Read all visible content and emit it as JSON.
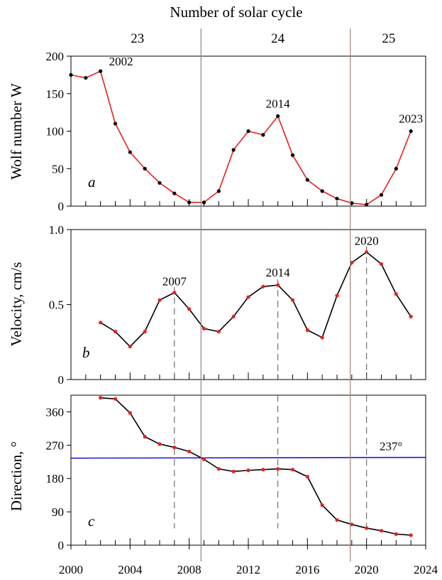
{
  "title": "Number of solar cycle",
  "cycles": [
    {
      "label": "23",
      "x": 2004.5
    },
    {
      "label": "24",
      "x": 2014.0
    },
    {
      "label": "25",
      "x": 2021.5
    }
  ],
  "cycle_boundaries": [
    2008.8,
    2018.9
  ],
  "x_axis": {
    "range": [
      2000,
      2024
    ],
    "ticks": [
      2000,
      2004,
      2008,
      2012,
      2016,
      2020,
      2024
    ],
    "tick_labels": [
      "2000",
      "2004",
      "2008",
      "2012",
      "2016",
      "2020",
      "2024"
    ]
  },
  "colors": {
    "line_a": "#e8201c",
    "line_bc": "#000000",
    "point_a": "#000000",
    "point_bc": "#e8201c",
    "reference": "#1a1ad6",
    "boundary": "#9b8378",
    "guide": "#555555"
  },
  "chart_data": [
    {
      "type": "line",
      "panel_label": "a",
      "ylabel": "Wolf number W",
      "ylim": [
        0,
        200
      ],
      "yticks": [
        0,
        50,
        100,
        150,
        200
      ],
      "ytick_labels": [
        "0",
        "50",
        "100",
        "150",
        "200"
      ],
      "series": [
        {
          "x": [
            2000,
            2001,
            2002,
            2003,
            2004,
            2005,
            2006,
            2007,
            2008,
            2009,
            2010,
            2011,
            2012,
            2013,
            2014,
            2015,
            2016,
            2017,
            2018,
            2019,
            2020,
            2021,
            2022,
            2023
          ],
          "values": [
            175,
            171,
            180,
            110,
            72,
            50,
            31,
            17,
            5,
            5,
            20,
            75,
            100,
            95,
            120,
            68,
            35,
            20,
            10,
            4,
            2,
            15,
            50,
            100
          ]
        }
      ],
      "annotations": [
        {
          "text": "2002",
          "x": 2002,
          "y": 180
        },
        {
          "text": "2014",
          "x": 2014,
          "y": 120
        },
        {
          "text": "2023",
          "x": 2023,
          "y": 100
        }
      ]
    },
    {
      "type": "line",
      "panel_label": "b",
      "ylabel": "Velocity, cm/s",
      "ylim": [
        0,
        1.0
      ],
      "yticks": [
        0,
        0.5,
        1.0
      ],
      "ytick_labels": [
        "0",
        "0.5",
        "1.0"
      ],
      "series": [
        {
          "x": [
            2002,
            2003,
            2004,
            2005,
            2006,
            2007,
            2008,
            2009,
            2010,
            2011,
            2012,
            2013,
            2014,
            2015,
            2016,
            2017,
            2018,
            2019,
            2020,
            2021,
            2022,
            2023
          ],
          "values": [
            0.38,
            0.32,
            0.22,
            0.32,
            0.53,
            0.58,
            0.47,
            0.34,
            0.32,
            0.42,
            0.55,
            0.62,
            0.63,
            0.53,
            0.33,
            0.28,
            0.56,
            0.78,
            0.85,
            0.77,
            0.57,
            0.42
          ]
        }
      ],
      "annotations": [
        {
          "text": "2007",
          "x": 2007,
          "y": 0.58
        },
        {
          "text": "2014",
          "x": 2014,
          "y": 0.63
        },
        {
          "text": "2020",
          "x": 2020,
          "y": 0.85
        }
      ]
    },
    {
      "type": "line",
      "panel_label": "c",
      "ylabel": "Direction, °",
      "ylim": [
        0,
        405
      ],
      "yticks": [
        0,
        90,
        180,
        270,
        360
      ],
      "ytick_labels": [
        "0",
        "90",
        "180",
        "270",
        "360"
      ],
      "series": [
        {
          "x": [
            2002,
            2003,
            2004,
            2005,
            2006,
            2007,
            2008,
            2009,
            2010,
            2011,
            2012,
            2013,
            2014,
            2015,
            2016,
            2017,
            2018,
            2019,
            2020,
            2021,
            2022,
            2023
          ],
          "values": [
            398,
            395,
            357,
            293,
            273,
            264,
            253,
            232,
            206,
            199,
            202,
            204,
            206,
            204,
            185,
            108,
            68,
            56,
            46,
            39,
            30,
            27
          ]
        }
      ],
      "reference_line": {
        "label": "237°",
        "y_start": 235,
        "y_end": 237
      },
      "guide_years": [
        2007,
        2014,
        2020
      ]
    }
  ]
}
